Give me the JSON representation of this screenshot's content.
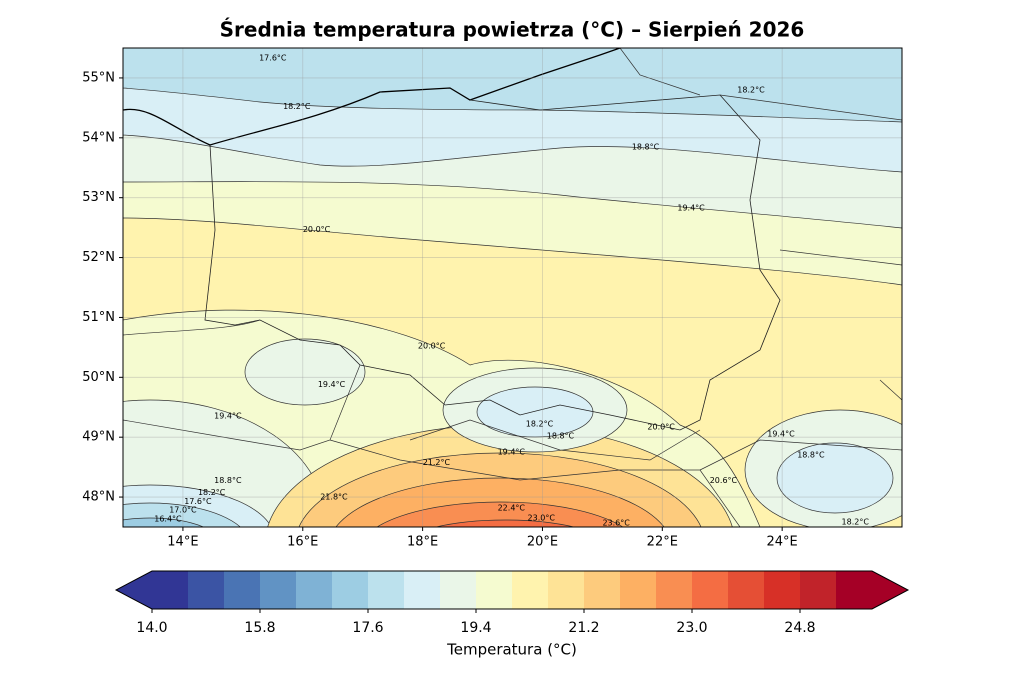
{
  "chart_data": {
    "type": "contour_map",
    "title": "Średnia temperatura powietrza (°C) – Sierpień 2026",
    "xlim": [
      13,
      26
    ],
    "ylim": [
      47.5,
      55.5
    ],
    "xticks": [
      {
        "value": 14,
        "label": "14°E"
      },
      {
        "value": 16,
        "label": "16°E"
      },
      {
        "value": 18,
        "label": "18°E"
      },
      {
        "value": 20,
        "label": "20°E"
      },
      {
        "value": 22,
        "label": "22°E"
      },
      {
        "value": 24,
        "label": "24°E"
      }
    ],
    "yticks": [
      {
        "value": 48,
        "label": "48°N"
      },
      {
        "value": 49,
        "label": "49°N"
      },
      {
        "value": 50,
        "label": "50°N"
      },
      {
        "value": 51,
        "label": "51°N"
      },
      {
        "value": 52,
        "label": "52°N"
      },
      {
        "value": 53,
        "label": "53°N"
      },
      {
        "value": 54,
        "label": "54°N"
      },
      {
        "value": 55,
        "label": "55°N"
      }
    ],
    "grid": true,
    "contour_labels": [
      {
        "label": "17.6°C",
        "lon": 15.5,
        "lat": 55.33
      },
      {
        "label": "18.2°C",
        "lon": 15.9,
        "lat": 54.52
      },
      {
        "label": "18.2°C",
        "lon": 23.48,
        "lat": 54.8
      },
      {
        "label": "18.8°C",
        "lon": 21.72,
        "lat": 53.85
      },
      {
        "label": "19.4°C",
        "lon": 22.48,
        "lat": 52.83
      },
      {
        "label": "20.0°C",
        "lon": 16.23,
        "lat": 52.47
      },
      {
        "label": "20.0°C",
        "lon": 18.15,
        "lat": 50.52
      },
      {
        "label": "19.4°C",
        "lon": 16.48,
        "lat": 49.88
      },
      {
        "label": "19.4°C",
        "lon": 14.75,
        "lat": 49.35
      },
      {
        "label": "18.2°C",
        "lon": 19.95,
        "lat": 49.22
      },
      {
        "label": "18.8°C",
        "lon": 20.3,
        "lat": 49.02
      },
      {
        "label": "19.4°C",
        "lon": 19.48,
        "lat": 48.75
      },
      {
        "label": "20.0°C",
        "lon": 21.98,
        "lat": 49.17
      },
      {
        "label": "21.2°C",
        "lon": 18.23,
        "lat": 48.58
      },
      {
        "label": "21.8°C",
        "lon": 16.52,
        "lat": 48.0
      },
      {
        "label": "22.4°C",
        "lon": 19.48,
        "lat": 47.82
      },
      {
        "label": "23.0°C",
        "lon": 19.98,
        "lat": 47.65
      },
      {
        "label": "23.6°C",
        "lon": 21.23,
        "lat": 47.57
      },
      {
        "label": "20.6°C",
        "lon": 23.02,
        "lat": 48.28
      },
      {
        "label": "19.4°C",
        "lon": 23.98,
        "lat": 49.05
      },
      {
        "label": "18.8°C",
        "lon": 24.48,
        "lat": 48.7
      },
      {
        "label": "18.2°C",
        "lon": 25.22,
        "lat": 47.58
      },
      {
        "label": "18.8°C",
        "lon": 14.75,
        "lat": 48.28
      },
      {
        "label": "18.2°C",
        "lon": 14.48,
        "lat": 48.08
      },
      {
        "label": "17.6°C",
        "lon": 14.25,
        "lat": 47.93
      },
      {
        "label": "17.0°C",
        "lon": 14.0,
        "lat": 47.78
      },
      {
        "label": "16.4°C",
        "lon": 13.75,
        "lat": 47.63
      }
    ],
    "colorbar": {
      "label": "Temperatura (°C)",
      "levels": [
        14.0,
        14.6,
        15.2,
        15.8,
        16.4,
        17.0,
        17.6,
        18.2,
        18.8,
        19.4,
        20.0,
        20.6,
        21.2,
        21.8,
        22.4,
        23.0,
        23.6,
        24.2,
        24.8,
        25.4,
        26.0
      ],
      "colors": [
        "#313695",
        "#3b54a4",
        "#4a74b4",
        "#6193c4",
        "#7fb2d5",
        "#9dcde3",
        "#bce1ed",
        "#d9eff6",
        "#eaf6e8",
        "#f5fbd0",
        "#fff3ae",
        "#fee396",
        "#fdcb7d",
        "#fdb063",
        "#f98e52",
        "#f46d43",
        "#e54f35",
        "#d73027",
        "#c1232a",
        "#a50026"
      ],
      "ticks": [
        {
          "value": 14.0,
          "label": "14.0"
        },
        {
          "value": 15.8,
          "label": "15.8"
        },
        {
          "value": 17.6,
          "label": "17.6"
        },
        {
          "value": 19.4,
          "label": "19.4"
        },
        {
          "value": 21.2,
          "label": "21.2"
        },
        {
          "value": 23.0,
          "label": "23.0"
        },
        {
          "value": 24.8,
          "label": "24.8"
        }
      ]
    }
  }
}
